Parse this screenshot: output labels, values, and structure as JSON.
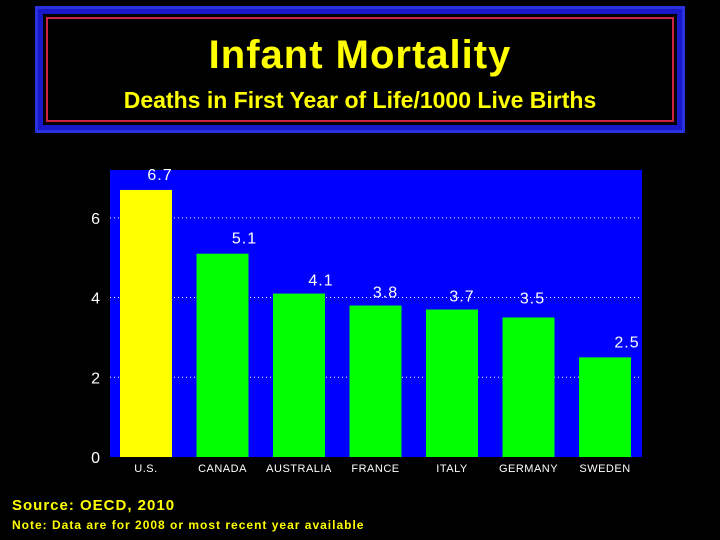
{
  "header": {
    "title": "Infant Mortality",
    "subtitle": "Deaths in First Year of Life/1000 Live Births"
  },
  "footer": {
    "source": "Source: OECD, 2010",
    "note": "Note: Data are for 2008 or most recent year available"
  },
  "colors": {
    "plot_bg": "#0000ff",
    "highlight_bar": "#ffff00",
    "bar": "#00ff00",
    "text": "#ffffff",
    "grid": "#ffffff"
  },
  "chart_data": {
    "type": "bar",
    "title": "Infant Mortality",
    "subtitle": "Deaths in First Year of Life/1000 Live Births",
    "xlabel": "",
    "ylabel": "",
    "categories": [
      "U.S.",
      "CANADA",
      "AUSTRALIA",
      "FRANCE",
      "ITALY",
      "GERMANY",
      "SWEDEN"
    ],
    "values": [
      6.7,
      5.1,
      4.1,
      3.8,
      3.7,
      3.5,
      2.5
    ],
    "value_labels": [
      "6.7",
      "5.1",
      "4.1",
      "3.8",
      "3.7",
      "3.5",
      "2.5"
    ],
    "highlight": [
      true,
      false,
      false,
      false,
      false,
      false,
      false
    ],
    "yticks": [
      0,
      2,
      4,
      6
    ],
    "ylim": [
      0,
      7.2
    ],
    "grid": true
  }
}
